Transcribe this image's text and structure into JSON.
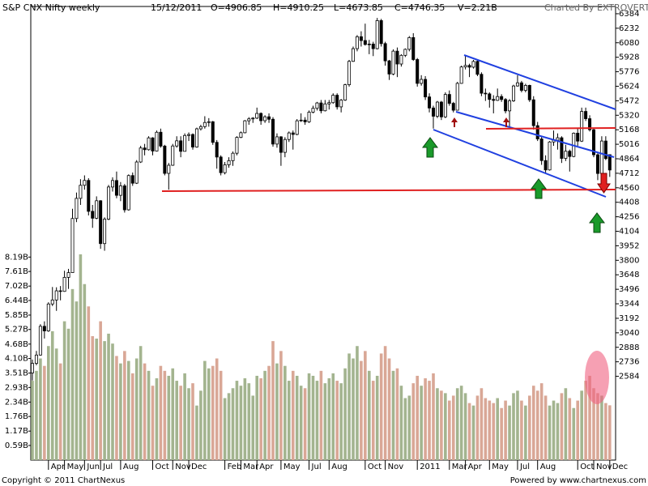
{
  "chart_data": {
    "type": "candlestick",
    "title": "S&P CNX Nifty weekly",
    "header": {
      "date": "15/12/2011",
      "open": "O=4906.85",
      "high": "H=4910.25",
      "low": "L=4673.85",
      "close": "C=4746.35",
      "volume": "V=2.21B",
      "credit": "Charted By EXTROVERT"
    },
    "categories": [
      null,
      null,
      null,
      null,
      "Apr",
      null,
      null,
      null,
      "May",
      null,
      null,
      null,
      null,
      "Jun",
      null,
      null,
      null,
      "Jul",
      null,
      null,
      null,
      null,
      "Aug",
      null,
      null,
      null,
      null,
      null,
      null,
      null,
      "Oct",
      null,
      null,
      null,
      null,
      "Nov",
      null,
      null,
      null,
      "Dec",
      null,
      null,
      null,
      null,
      null,
      null,
      null,
      null,
      "Feb",
      null,
      null,
      null,
      "Mar",
      null,
      null,
      null,
      "Apr",
      null,
      null,
      null,
      null,
      null,
      "May",
      null,
      null,
      null,
      null,
      null,
      null,
      "Jul",
      null,
      null,
      null,
      null,
      "Aug",
      null,
      null,
      null,
      null,
      null,
      null,
      null,
      null,
      "Oct",
      null,
      null,
      null,
      null,
      "Nov",
      null,
      null,
      null,
      null,
      null,
      null,
      null,
      "2011",
      null,
      null,
      null,
      null,
      null,
      null,
      null,
      "Mar",
      null,
      null,
      null,
      "Apr",
      null,
      null,
      null,
      null,
      null,
      "May",
      null,
      null,
      null,
      null,
      null,
      null,
      "Jul",
      null,
      null,
      null,
      null,
      "Aug",
      null,
      null,
      null,
      null,
      null,
      null,
      null,
      null,
      null,
      "Oct",
      null,
      null,
      null,
      "Nov",
      null,
      null,
      null,
      "Dec"
    ],
    "candles": [
      [
        2620,
        2760,
        2540,
        2719,
        3.2
      ],
      [
        2720,
        2850,
        2700,
        2807,
        3.6
      ],
      [
        2807,
        3130,
        2800,
        3108,
        4.1
      ],
      [
        3108,
        3160,
        2980,
        3060,
        3.8
      ],
      [
        3060,
        3360,
        3050,
        3342,
        4.6
      ],
      [
        3342,
        3520,
        3320,
        3384,
        5.2
      ],
      [
        3384,
        3517,
        3270,
        3480,
        4.5
      ],
      [
        3480,
        3530,
        3380,
        3474,
        3.9
      ],
      [
        3474,
        3690,
        3470,
        3621,
        5.6
      ],
      [
        3621,
        3710,
        3500,
        3671,
        5.3
      ],
      [
        3671,
        4340,
        3670,
        4238,
        6.9
      ],
      [
        4238,
        4510,
        4200,
        4449,
        6.4
      ],
      [
        4449,
        4650,
        4380,
        4586,
        8.3
      ],
      [
        4586,
        4690,
        4540,
        4637,
        7.1
      ],
      [
        4637,
        4660,
        4270,
        4313,
        6.2
      ],
      [
        4313,
        4380,
        4140,
        4241,
        5.0
      ],
      [
        4241,
        4470,
        4230,
        4424,
        4.9
      ],
      [
        4424,
        4430,
        3920,
        3975,
        5.6
      ],
      [
        3975,
        4250,
        3900,
        4231,
        4.8
      ],
      [
        4231,
        4590,
        4220,
        4568,
        5.1
      ],
      [
        4568,
        4670,
        4520,
        4636,
        4.7
      ],
      [
        4636,
        4730,
        4450,
        4481,
        4.2
      ],
      [
        4481,
        4620,
        4420,
        4580,
        3.9
      ],
      [
        4580,
        4600,
        4300,
        4329,
        4.4
      ],
      [
        4329,
        4700,
        4320,
        4688,
        4.0
      ],
      [
        4688,
        4720,
        4580,
        4608,
        3.5
      ],
      [
        4608,
        4850,
        4600,
        4830,
        4.1
      ],
      [
        4830,
        5000,
        4820,
        4977,
        4.6
      ],
      [
        4977,
        5020,
        4900,
        4959,
        3.9
      ],
      [
        4959,
        5100,
        4950,
        5083,
        3.6
      ],
      [
        5083,
        5090,
        4900,
        4945,
        3.0
      ],
      [
        4945,
        5160,
        4940,
        5142,
        3.3
      ],
      [
        5142,
        5180,
        4980,
        4997,
        3.8
      ],
      [
        4997,
        5010,
        4690,
        4711,
        3.6
      ],
      [
        4711,
        4820,
        4540,
        4796,
        3.4
      ],
      [
        4796,
        5020,
        4790,
        4998,
        3.7
      ],
      [
        4998,
        5100,
        4980,
        5052,
        3.2
      ],
      [
        5052,
        5100,
        4880,
        4942,
        3.0
      ],
      [
        4942,
        5130,
        4940,
        5108,
        3.5
      ],
      [
        5108,
        5140,
        5050,
        5118,
        2.9
      ],
      [
        5118,
        5130,
        4960,
        4987,
        3.1
      ],
      [
        4987,
        5190,
        4980,
        5178,
        2.2
      ],
      [
        5178,
        5220,
        5160,
        5201,
        2.8
      ],
      [
        5201,
        5310,
        5180,
        5244,
        4.0
      ],
      [
        5244,
        5290,
        5200,
        5252,
        3.7
      ],
      [
        5252,
        5260,
        5010,
        5036,
        3.8
      ],
      [
        5036,
        5060,
        4760,
        4882,
        4.1
      ],
      [
        4882,
        4900,
        4690,
        4718,
        3.6
      ],
      [
        4718,
        4830,
        4700,
        4801,
        2.5
      ],
      [
        4801,
        4880,
        4770,
        4844,
        2.7
      ],
      [
        4844,
        4940,
        4790,
        4922,
        2.9
      ],
      [
        4922,
        5100,
        4900,
        5088,
        3.2
      ],
      [
        5088,
        5150,
        5080,
        5137,
        3.0
      ],
      [
        5137,
        5270,
        5130,
        5262,
        3.3
      ],
      [
        5262,
        5300,
        5220,
        5282,
        3.1
      ],
      [
        5282,
        5300,
        5240,
        5290,
        2.6
      ],
      [
        5290,
        5400,
        5280,
        5339,
        3.4
      ],
      [
        5339,
        5350,
        5220,
        5263,
        3.3
      ],
      [
        5263,
        5320,
        5240,
        5304,
        3.6
      ],
      [
        5304,
        5340,
        5240,
        5278,
        3.8
      ],
      [
        5278,
        5300,
        4990,
        5018,
        4.8
      ],
      [
        5018,
        5130,
        4980,
        5094,
        3.9
      ],
      [
        5094,
        5100,
        4790,
        4931,
        4.4
      ],
      [
        4931,
        5090,
        4880,
        5066,
        3.8
      ],
      [
        5066,
        5150,
        5040,
        5135,
        3.2
      ],
      [
        5135,
        5160,
        4960,
        5119,
        3.6
      ],
      [
        5119,
        5280,
        5110,
        5262,
        3.4
      ],
      [
        5262,
        5340,
        5250,
        5269,
        3.0
      ],
      [
        5269,
        5300,
        5220,
        5251,
        2.9
      ],
      [
        5251,
        5370,
        5240,
        5352,
        3.5
      ],
      [
        5352,
        5420,
        5340,
        5393,
        3.4
      ],
      [
        5393,
        5460,
        5370,
        5449,
        3.2
      ],
      [
        5449,
        5480,
        5340,
        5367,
        3.6
      ],
      [
        5367,
        5480,
        5360,
        5439,
        3.1
      ],
      [
        5439,
        5480,
        5380,
        5452,
        3.3
      ],
      [
        5452,
        5550,
        5440,
        5530,
        3.5
      ],
      [
        5530,
        5550,
        5380,
        5408,
        3.2
      ],
      [
        5408,
        5490,
        5350,
        5479,
        3.1
      ],
      [
        5479,
        5650,
        5470,
        5640,
        3.7
      ],
      [
        5640,
        5900,
        5620,
        5885,
        4.3
      ],
      [
        5885,
        6040,
        5880,
        6018,
        4.1
      ],
      [
        6018,
        6160,
        5990,
        6143,
        4.6
      ],
      [
        6143,
        6200,
        6040,
        6103,
        4.0
      ],
      [
        6103,
        6280,
        6050,
        6062,
        4.4
      ],
      [
        6062,
        6110,
        5960,
        6066,
        3.6
      ],
      [
        6066,
        6090,
        5940,
        6018,
        3.2
      ],
      [
        6018,
        6340,
        6010,
        6312,
        3.4
      ],
      [
        6312,
        6330,
        6040,
        6071,
        4.3
      ],
      [
        6071,
        6090,
        5840,
        5890,
        4.6
      ],
      [
        5890,
        5900,
        5690,
        5752,
        4.1
      ],
      [
        5752,
        6010,
        5740,
        5992,
        3.6
      ],
      [
        5992,
        6030,
        5720,
        5857,
        3.7
      ],
      [
        5857,
        5960,
        5830,
        5948,
        3.0
      ],
      [
        5948,
        6020,
        5930,
        6011,
        2.5
      ],
      [
        6011,
        6150,
        5990,
        6134,
        2.6
      ],
      [
        6134,
        6180,
        5890,
        5904,
        3.1
      ],
      [
        5904,
        5920,
        5620,
        5654,
        3.4
      ],
      [
        5654,
        5740,
        5630,
        5696,
        3.0
      ],
      [
        5696,
        5730,
        5480,
        5512,
        3.3
      ],
      [
        5512,
        5550,
        5350,
        5396,
        3.2
      ],
      [
        5396,
        5420,
        5180,
        5310,
        3.5
      ],
      [
        5310,
        5470,
        5290,
        5458,
        2.9
      ],
      [
        5458,
        5470,
        5270,
        5303,
        2.8
      ],
      [
        5303,
        5560,
        5290,
        5538,
        2.7
      ],
      [
        5538,
        5580,
        5420,
        5445,
        2.4
      ],
      [
        5445,
        5460,
        5350,
        5373,
        2.6
      ],
      [
        5373,
        5670,
        5370,
        5654,
        2.9
      ],
      [
        5654,
        5840,
        5650,
        5826,
        3.0
      ],
      [
        5826,
        5940,
        5800,
        5842,
        2.7
      ],
      [
        5842,
        5860,
        5720,
        5824,
        2.3
      ],
      [
        5824,
        5900,
        5810,
        5884,
        2.2
      ],
      [
        5884,
        5900,
        5730,
        5749,
        2.6
      ],
      [
        5749,
        5770,
        5520,
        5551,
        2.9
      ],
      [
        5551,
        5600,
        5470,
        5544,
        2.5
      ],
      [
        5544,
        5560,
        5400,
        5486,
        2.4
      ],
      [
        5486,
        5530,
        5340,
        5476,
        2.3
      ],
      [
        5476,
        5600,
        5470,
        5516,
        2.5
      ],
      [
        5516,
        5540,
        5460,
        5485,
        2.1
      ],
      [
        5485,
        5500,
        5340,
        5366,
        2.4
      ],
      [
        5366,
        5490,
        5200,
        5471,
        2.2
      ],
      [
        5471,
        5640,
        5460,
        5627,
        2.7
      ],
      [
        5627,
        5740,
        5620,
        5660,
        2.8
      ],
      [
        5660,
        5680,
        5560,
        5581,
        2.4
      ],
      [
        5581,
        5650,
        5560,
        5633,
        2.2
      ],
      [
        5633,
        5640,
        5460,
        5482,
        2.6
      ],
      [
        5482,
        5520,
        5170,
        5211,
        3.0
      ],
      [
        5211,
        5250,
        5050,
        5072,
        2.8
      ],
      [
        5072,
        5100,
        4800,
        4845,
        3.1
      ],
      [
        4845,
        4900,
        4720,
        4747,
        2.6
      ],
      [
        4747,
        5050,
        4740,
        5040,
        2.2
      ],
      [
        5040,
        5160,
        5000,
        5059,
        2.4
      ],
      [
        5059,
        5130,
        4960,
        5084,
        2.3
      ],
      [
        5084,
        5100,
        4820,
        4868,
        2.7
      ],
      [
        4868,
        5010,
        4840,
        4943,
        2.9
      ],
      [
        4943,
        4960,
        4730,
        4888,
        2.5
      ],
      [
        4888,
        5140,
        4880,
        5132,
        2.1
      ],
      [
        5132,
        5180,
        5000,
        5049,
        2.4
      ],
      [
        5049,
        5400,
        5040,
        5360,
        2.8
      ],
      [
        5360,
        5400,
        5260,
        5284,
        3.2
      ],
      [
        5284,
        5320,
        5150,
        5168,
        3.4
      ],
      [
        5168,
        5180,
        4880,
        4906,
        2.9
      ],
      [
        4906,
        4920,
        4640,
        4710,
        2.7
      ],
      [
        4710,
        5100,
        4700,
        5050,
        2.6
      ],
      [
        5050,
        5100,
        4850,
        4866,
        2.3
      ],
      [
        4906.85,
        4910.25,
        4673.85,
        4746.35,
        2.21
      ]
    ],
    "ylim": [
      1706,
      6460
    ],
    "yticks": [
      6384,
      6232,
      6080,
      5928,
      5776,
      5624,
      5472,
      5320,
      5168,
      5016,
      4864,
      4712,
      4560,
      4408,
      4256,
      4104,
      3952,
      3800,
      3648,
      3496,
      3344,
      3192,
      3040,
      2888,
      2736,
      2584
    ],
    "volume_ylim": [
      0,
      18.3
    ],
    "volume_ticks": [
      {
        "value": 0.59,
        "label": "0.59B"
      },
      {
        "value": 1.17,
        "label": "1.17B"
      },
      {
        "value": 1.76,
        "label": "1.76B"
      },
      {
        "value": 2.34,
        "label": "2.34B"
      },
      {
        "value": 2.93,
        "label": "2.93B"
      },
      {
        "value": 3.51,
        "label": "3.51B"
      },
      {
        "value": 4.1,
        "label": "4.10B"
      },
      {
        "value": 4.68,
        "label": "4.68B"
      },
      {
        "value": 5.27,
        "label": "5.27B"
      },
      {
        "value": 5.85,
        "label": "5.85B"
      },
      {
        "value": 6.44,
        "label": "6.44B"
      },
      {
        "value": 7.02,
        "label": "7.02B"
      },
      {
        "value": 7.61,
        "label": "7.61B"
      },
      {
        "value": 8.19,
        "label": "8.19B"
      }
    ],
    "colors": {
      "up_volume": "#a3b48f",
      "down_volume": "#d9a796",
      "up_body": "#ffffff",
      "down_body": "#000000"
    }
  },
  "footer": {
    "left": "Copyright © 2011 ChartNexus",
    "right": "Powered by www.chartnexus.com"
  }
}
